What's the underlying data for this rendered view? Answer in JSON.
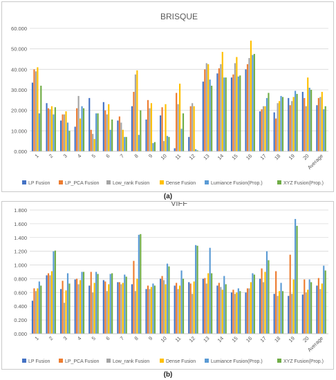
{
  "captions": [
    "(a)",
    "(b)"
  ],
  "chart_data": [
    {
      "type": "bar",
      "title": "BRISQUE",
      "xlabel": "",
      "ylabel": "",
      "ylim": [
        0,
        60
      ],
      "yticks": [
        "0.000",
        "10.000",
        "20.000",
        "30.000",
        "40.000",
        "50.000",
        "60.000"
      ],
      "grid": true,
      "legend_position": "bottom",
      "categories": [
        "1",
        "2",
        "3",
        "4",
        "5",
        "6",
        "7",
        "8",
        "9",
        "10",
        "11",
        "12",
        "13",
        "14",
        "15",
        "16",
        "17",
        "18",
        "19",
        "20",
        "Average"
      ],
      "series": [
        {
          "name": "LP Fusion",
          "color": "#4472C4",
          "values": [
            33.5,
            23.5,
            15.0,
            12.0,
            26.0,
            24.0,
            15.0,
            22.0,
            15.5,
            17.5,
            1.5,
            7.0,
            34.0,
            38.0,
            36.0,
            40.0,
            19.5,
            19.0,
            26.0,
            29.0,
            22.5
          ]
        },
        {
          "name": "LP_PCA Fusion",
          "color": "#ED7D31",
          "values": [
            40.0,
            21.0,
            18.0,
            21.0,
            10.5,
            20.0,
            17.0,
            29.0,
            25.0,
            21.5,
            28.5,
            22.0,
            40.0,
            40.5,
            37.5,
            42.5,
            20.5,
            16.0,
            22.5,
            26.0,
            26.0
          ]
        },
        {
          "name": "Low_rank Fusion",
          "color": "#A5A5A5",
          "values": [
            39.0,
            20.5,
            18.0,
            27.0,
            8.5,
            18.0,
            14.0,
            37.5,
            21.0,
            5.0,
            23.0,
            23.5,
            43.0,
            42.5,
            43.0,
            45.5,
            22.0,
            23.5,
            24.5,
            22.0,
            26.5
          ]
        },
        {
          "name": "Dense Fusion",
          "color": "#FFC000",
          "values": [
            41.0,
            22.0,
            19.5,
            16.0,
            6.0,
            23.0,
            10.5,
            39.5,
            23.5,
            23.0,
            33.0,
            22.0,
            42.5,
            48.5,
            46.0,
            54.0,
            22.0,
            24.5,
            26.5,
            36.0,
            29.0
          ]
        },
        {
          "name": "Lumiance Fusion(Prop.)",
          "color": "#5B9BD5",
          "values": [
            18.5,
            18.0,
            14.0,
            22.0,
            18.5,
            10.5,
            7.0,
            8.0,
            4.0,
            7.5,
            11.0,
            1.0,
            35.0,
            36.0,
            36.5,
            47.0,
            26.0,
            27.0,
            29.5,
            31.0,
            20.5
          ]
        },
        {
          "name": "XYZ Fusion(Prop.)",
          "color": "#70AD47",
          "values": [
            32.0,
            21.5,
            10.0,
            21.0,
            18.5,
            15.5,
            7.0,
            20.0,
            4.5,
            7.0,
            18.5,
            0.5,
            32.0,
            36.0,
            37.0,
            47.5,
            28.5,
            26.5,
            28.0,
            30.0,
            22.0
          ]
        }
      ]
    },
    {
      "type": "bar",
      "title": "VIFF",
      "xlabel": "",
      "ylabel": "",
      "ylim": [
        0,
        1.8
      ],
      "yticks": [
        "0.000",
        "0.200",
        "0.400",
        "0.600",
        "0.800",
        "1.000",
        "1.200",
        "1.400",
        "1.600",
        "1.800"
      ],
      "grid": true,
      "legend_position": "bottom",
      "categories": [
        "1",
        "2",
        "3",
        "4",
        "5",
        "6",
        "7",
        "8",
        "9",
        "10",
        "11",
        "12",
        "13",
        "14",
        "15",
        "16",
        "17",
        "18",
        "19",
        "20",
        "Average"
      ],
      "series": [
        {
          "name": "LP Fusion",
          "color": "#4472C4",
          "values": [
            0.48,
            0.85,
            0.65,
            0.79,
            0.7,
            0.78,
            0.75,
            0.72,
            0.65,
            0.8,
            0.7,
            0.75,
            0.8,
            0.7,
            0.6,
            0.6,
            0.8,
            0.58,
            0.55,
            0.57,
            0.7
          ]
        },
        {
          "name": "LP_PCA Fusion",
          "color": "#ED7D31",
          "values": [
            0.66,
            0.88,
            0.77,
            0.8,
            0.9,
            0.76,
            0.75,
            1.06,
            0.7,
            0.84,
            0.74,
            0.73,
            0.81,
            0.74,
            0.64,
            0.66,
            0.95,
            0.91,
            1.15,
            0.79,
            0.81
          ]
        },
        {
          "name": "Low_rank Fusion",
          "color": "#A5A5A5",
          "values": [
            0.62,
            0.85,
            0.45,
            0.72,
            0.6,
            0.62,
            0.72,
            0.62,
            0.65,
            0.78,
            0.65,
            0.58,
            0.73,
            0.68,
            0.58,
            0.66,
            0.75,
            0.55,
            0.58,
            0.6,
            0.65
          ]
        },
        {
          "name": "Dense Fusion",
          "color": "#FFC000",
          "values": [
            0.66,
            0.91,
            0.63,
            0.78,
            0.74,
            0.72,
            0.74,
            0.8,
            0.68,
            0.72,
            0.7,
            0.76,
            0.88,
            0.64,
            0.6,
            0.75,
            0.9,
            0.62,
            0.79,
            0.64,
            0.73
          ]
        },
        {
          "name": "Lumiance Fusion(Prop.)",
          "color": "#5B9BD5",
          "values": [
            0.76,
            1.2,
            0.88,
            0.9,
            0.9,
            0.87,
            0.86,
            1.44,
            0.73,
            1.02,
            0.92,
            1.29,
            1.25,
            0.84,
            0.66,
            0.88,
            1.2,
            0.74,
            1.67,
            0.79,
            0.99
          ]
        },
        {
          "name": "XYZ Fusion(Prop.)",
          "color": "#70AD47",
          "values": [
            0.7,
            1.21,
            0.73,
            0.9,
            0.87,
            0.88,
            0.83,
            1.45,
            0.7,
            0.98,
            0.8,
            1.28,
            0.88,
            0.72,
            0.62,
            0.86,
            1.07,
            0.62,
            1.57,
            0.75,
            0.92
          ]
        }
      ]
    }
  ]
}
